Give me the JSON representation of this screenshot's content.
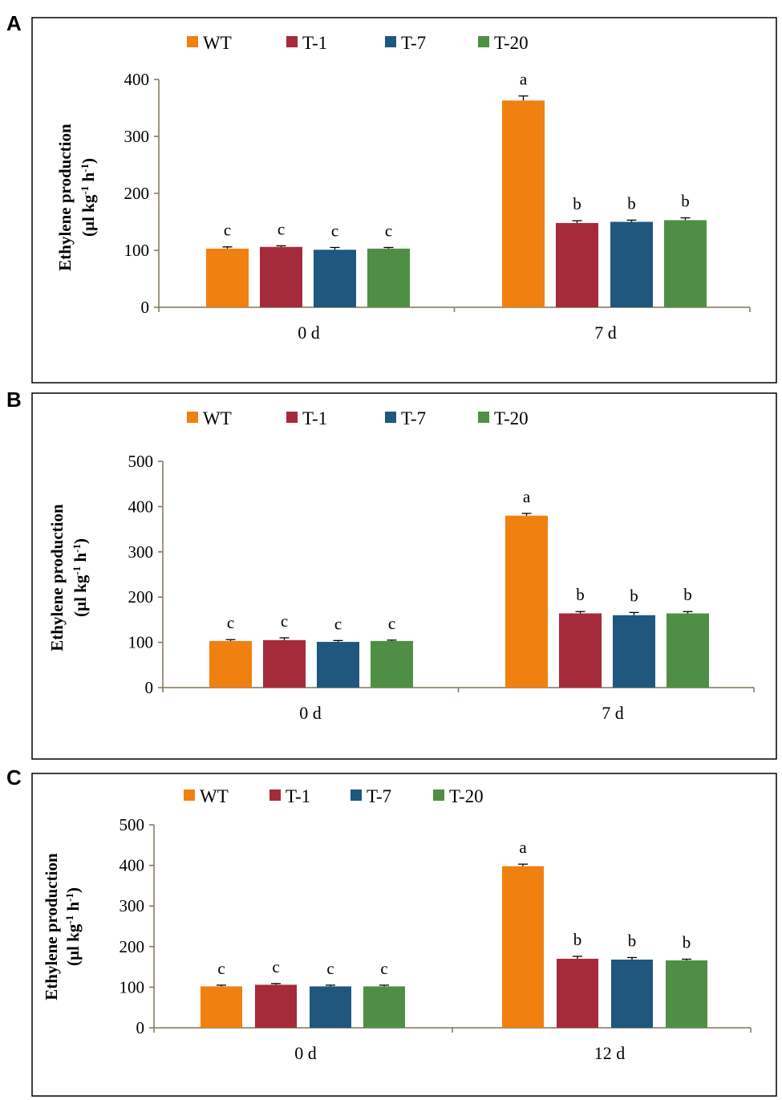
{
  "chart_data": [
    {
      "panel": "A",
      "type": "bar",
      "categories": [
        "0 d",
        "7 d"
      ],
      "series": [
        {
          "name": "WT",
          "color": "#f08010",
          "values": [
            103,
            363
          ],
          "errors": [
            3,
            8
          ],
          "letters": [
            "c",
            "a"
          ]
        },
        {
          "name": "T-1",
          "color": "#a52a3a",
          "values": [
            106,
            148
          ],
          "errors": [
            2,
            4
          ],
          "letters": [
            "c",
            "b"
          ]
        },
        {
          "name": "T-7",
          "color": "#1f577e",
          "values": [
            101,
            150
          ],
          "errors": [
            4,
            3
          ],
          "letters": [
            "c",
            "b"
          ]
        },
        {
          "name": "T-20",
          "color": "#4f8f45",
          "values": [
            103,
            153
          ],
          "errors": [
            2,
            4
          ],
          "letters": [
            "c",
            "b"
          ]
        }
      ],
      "ylabel_line1": "Ethylene production",
      "ylabel_line2_prefix": "(µl kg",
      "ylabel_line2_sup1": "-1",
      "ylabel_line2_mid": " h",
      "ylabel_line2_sup2": "-1",
      "ylabel_line2_suffix": ")",
      "ylim": [
        0,
        400
      ],
      "yticks": [
        0,
        100,
        200,
        300,
        400
      ],
      "legend_position": "top-left"
    },
    {
      "panel": "B",
      "type": "bar",
      "categories": [
        "0 d",
        "7 d"
      ],
      "series": [
        {
          "name": "WT",
          "color": "#f08010",
          "values": [
            103,
            380
          ],
          "errors": [
            3,
            5
          ],
          "letters": [
            "c",
            "a"
          ]
        },
        {
          "name": "T-1",
          "color": "#a52a3a",
          "values": [
            105,
            164
          ],
          "errors": [
            5,
            4
          ],
          "letters": [
            "c",
            "b"
          ]
        },
        {
          "name": "T-7",
          "color": "#1f577e",
          "values": [
            101,
            160
          ],
          "errors": [
            3,
            6
          ],
          "letters": [
            "c",
            "b"
          ]
        },
        {
          "name": "T-20",
          "color": "#4f8f45",
          "values": [
            103,
            164
          ],
          "errors": [
            2,
            4
          ],
          "letters": [
            "c",
            "b"
          ]
        }
      ],
      "ylabel_line1": "Ethylene production",
      "ylabel_line2_prefix": "(µl kg",
      "ylabel_line2_sup1": "-1",
      "ylabel_line2_mid": " h",
      "ylabel_line2_sup2": "-1",
      "ylabel_line2_suffix": ")",
      "ylim": [
        0,
        500
      ],
      "yticks": [
        0,
        100,
        200,
        300,
        400,
        500
      ],
      "legend_position": "top-left"
    },
    {
      "panel": "C",
      "type": "bar",
      "categories": [
        "0 d",
        "12 d"
      ],
      "series": [
        {
          "name": "WT",
          "color": "#f08010",
          "values": [
            102,
            398
          ],
          "errors": [
            3,
            5
          ],
          "letters": [
            "c",
            "a"
          ]
        },
        {
          "name": "T-1",
          "color": "#a52a3a",
          "values": [
            106,
            170
          ],
          "errors": [
            3,
            6
          ],
          "letters": [
            "c",
            "b"
          ]
        },
        {
          "name": "T-7",
          "color": "#1f577e",
          "values": [
            102,
            168
          ],
          "errors": [
            3,
            5
          ],
          "letters": [
            "c",
            "b"
          ]
        },
        {
          "name": "T-20",
          "color": "#4f8f45",
          "values": [
            102,
            166
          ],
          "errors": [
            3,
            3
          ],
          "letters": [
            "c",
            "b"
          ]
        }
      ],
      "ylabel_line1": "Ethylene production",
      "ylabel_line2_prefix": "(µl kg",
      "ylabel_line2_sup1": "-1",
      "ylabel_line2_mid": " h",
      "ylabel_line2_sup2": "-1",
      "ylabel_line2_suffix": ")",
      "ylim": [
        0,
        500
      ],
      "yticks": [
        0,
        100,
        200,
        300,
        400,
        500
      ],
      "legend_position": "top-left"
    }
  ]
}
